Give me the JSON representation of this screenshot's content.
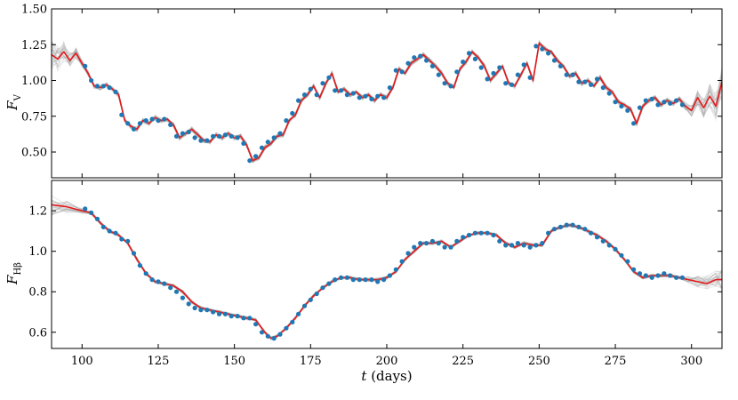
{
  "chart_data": [
    {
      "type": "line",
      "panel": "top",
      "title": "",
      "ylabel": "F",
      "ylabel_sub": "V",
      "xlabel": "",
      "xlim": [
        90,
        310
      ],
      "ylim": [
        0.32,
        1.5
      ],
      "xticks": [
        100,
        125,
        150,
        175,
        200,
        225,
        250,
        275,
        300
      ],
      "xticklabels_visible": false,
      "yticks": [
        0.5,
        0.75,
        1.0,
        1.25,
        1.5
      ],
      "yticklabels": [
        "0.50",
        "0.75",
        "1.00",
        "1.25",
        "1.50"
      ],
      "grid": false,
      "legend": "none",
      "series": [
        {
          "role": "model",
          "style": "red line",
          "x": [
            90,
            92,
            94,
            96,
            98,
            100,
            102,
            104,
            106,
            108,
            110,
            112,
            114,
            116,
            118,
            120,
            122,
            124,
            126,
            128,
            130,
            132,
            134,
            136,
            138,
            140,
            142,
            144,
            146,
            148,
            150,
            152,
            154,
            156,
            158,
            160,
            162,
            164,
            166,
            168,
            170,
            172,
            174,
            176,
            178,
            180,
            182,
            184,
            186,
            188,
            190,
            192,
            194,
            196,
            198,
            200,
            202,
            204,
            206,
            208,
            210,
            212,
            214,
            216,
            218,
            220,
            222,
            224,
            226,
            228,
            230,
            232,
            234,
            236,
            238,
            240,
            242,
            244,
            246,
            248,
            250,
            252,
            254,
            256,
            258,
            260,
            262,
            264,
            266,
            268,
            270,
            272,
            274,
            276,
            278,
            280,
            282,
            284,
            286,
            288,
            290,
            292,
            294,
            296,
            298,
            300,
            302,
            304,
            306,
            308,
            310
          ],
          "y": [
            1.18,
            1.15,
            1.2,
            1.14,
            1.19,
            1.12,
            1.05,
            0.96,
            0.95,
            0.97,
            0.94,
            0.9,
            0.72,
            0.68,
            0.66,
            0.72,
            0.7,
            0.74,
            0.72,
            0.73,
            0.69,
            0.6,
            0.63,
            0.66,
            0.62,
            0.58,
            0.57,
            0.62,
            0.6,
            0.63,
            0.6,
            0.61,
            0.55,
            0.44,
            0.46,
            0.53,
            0.56,
            0.61,
            0.62,
            0.72,
            0.76,
            0.86,
            0.9,
            0.96,
            0.88,
            0.98,
            1.05,
            0.92,
            0.94,
            0.9,
            0.92,
            0.88,
            0.9,
            0.86,
            0.9,
            0.88,
            0.95,
            1.08,
            1.05,
            1.12,
            1.15,
            1.18,
            1.14,
            1.1,
            1.05,
            0.98,
            0.95,
            1.08,
            1.13,
            1.2,
            1.16,
            1.1,
            1.0,
            1.05,
            1.1,
            0.98,
            0.96,
            1.04,
            1.12,
            1.0,
            1.26,
            1.22,
            1.2,
            1.14,
            1.1,
            1.03,
            1.05,
            0.98,
            1.0,
            0.96,
            1.02,
            0.95,
            0.92,
            0.85,
            0.83,
            0.8,
            0.7,
            0.82,
            0.86,
            0.88,
            0.83,
            0.86,
            0.84,
            0.87,
            0.82,
            0.79,
            0.88,
            0.81,
            0.89,
            0.82,
            0.99
          ]
        },
        {
          "role": "observations",
          "style": "blue dots",
          "x": [
            101,
            103,
            105,
            107,
            109,
            111,
            113,
            115,
            117,
            119,
            121,
            123,
            125,
            127,
            129,
            131,
            133,
            135,
            137,
            139,
            141,
            143,
            145,
            147,
            149,
            151,
            153,
            155,
            157,
            159,
            161,
            163,
            165,
            167,
            169,
            171,
            173,
            175,
            177,
            179,
            181,
            183,
            185,
            187,
            189,
            191,
            193,
            195,
            197,
            199,
            201,
            203,
            205,
            207,
            209,
            211,
            213,
            215,
            217,
            219,
            221,
            223,
            225,
            227,
            229,
            231,
            233,
            235,
            237,
            239,
            241,
            243,
            245,
            247,
            249,
            251,
            253,
            255,
            257,
            259,
            261,
            263,
            265,
            267,
            269,
            271,
            273,
            275,
            277,
            279,
            281,
            283,
            285,
            287,
            289,
            291,
            293,
            295,
            297
          ],
          "y": [
            1.1,
            1.0,
            0.96,
            0.96,
            0.95,
            0.92,
            0.76,
            0.7,
            0.66,
            0.7,
            0.72,
            0.73,
            0.72,
            0.73,
            0.69,
            0.61,
            0.63,
            0.64,
            0.6,
            0.58,
            0.58,
            0.61,
            0.61,
            0.62,
            0.61,
            0.6,
            0.56,
            0.44,
            0.47,
            0.53,
            0.57,
            0.6,
            0.63,
            0.72,
            0.77,
            0.86,
            0.9,
            0.94,
            0.9,
            0.98,
            1.02,
            0.93,
            0.93,
            0.9,
            0.91,
            0.88,
            0.89,
            0.87,
            0.89,
            0.88,
            0.95,
            1.07,
            1.06,
            1.12,
            1.16,
            1.17,
            1.14,
            1.1,
            1.04,
            0.98,
            0.96,
            1.06,
            1.13,
            1.19,
            1.15,
            1.09,
            1.01,
            1.05,
            1.09,
            0.98,
            0.97,
            1.04,
            1.11,
            1.02,
            1.24,
            1.22,
            1.19,
            1.14,
            1.1,
            1.04,
            1.04,
            0.99,
            0.99,
            0.97,
            1.01,
            0.95,
            0.91,
            0.85,
            0.82,
            0.79,
            0.7,
            0.81,
            0.86,
            0.87,
            0.83,
            0.85,
            0.84,
            0.86,
            0.83
          ]
        }
      ]
    },
    {
      "type": "line",
      "panel": "bottom",
      "title": "",
      "ylabel": "F",
      "ylabel_sub": "Hβ",
      "xlabel": "t",
      "xlabel_unit": "(days)",
      "xlim": [
        90,
        310
      ],
      "ylim": [
        0.52,
        1.35
      ],
      "xticks": [
        100,
        125,
        150,
        175,
        200,
        225,
        250,
        275,
        300
      ],
      "xticklabels": [
        "100",
        "125",
        "150",
        "175",
        "200",
        "225",
        "250",
        "275",
        "300"
      ],
      "yticks": [
        0.6,
        0.8,
        1.0,
        1.2
      ],
      "yticklabels": [
        "0.6",
        "0.8",
        "1.0",
        "1.2"
      ],
      "grid": false,
      "legend": "none",
      "series": [
        {
          "role": "model",
          "style": "red line",
          "x": [
            90,
            95,
            100,
            103,
            106,
            109,
            112,
            115,
            118,
            121,
            124,
            127,
            130,
            133,
            136,
            139,
            142,
            145,
            148,
            151,
            154,
            157,
            160,
            162,
            164,
            167,
            170,
            173,
            176,
            179,
            182,
            185,
            188,
            191,
            194,
            197,
            200,
            203,
            206,
            209,
            212,
            215,
            218,
            221,
            224,
            227,
            230,
            233,
            236,
            239,
            242,
            245,
            248,
            251,
            254,
            257,
            260,
            263,
            266,
            269,
            272,
            275,
            278,
            281,
            284,
            287,
            290,
            293,
            296,
            299,
            302,
            305,
            308,
            310
          ],
          "y": [
            1.23,
            1.22,
            1.2,
            1.19,
            1.14,
            1.1,
            1.08,
            1.04,
            0.96,
            0.89,
            0.85,
            0.84,
            0.83,
            0.8,
            0.75,
            0.72,
            0.71,
            0.7,
            0.69,
            0.68,
            0.67,
            0.66,
            0.6,
            0.57,
            0.58,
            0.62,
            0.67,
            0.73,
            0.78,
            0.82,
            0.85,
            0.87,
            0.87,
            0.86,
            0.86,
            0.86,
            0.87,
            0.9,
            0.96,
            1.0,
            1.04,
            1.04,
            1.05,
            1.02,
            1.05,
            1.08,
            1.09,
            1.09,
            1.08,
            1.04,
            1.02,
            1.04,
            1.03,
            1.03,
            1.1,
            1.12,
            1.13,
            1.12,
            1.1,
            1.08,
            1.05,
            1.01,
            0.96,
            0.9,
            0.87,
            0.88,
            0.88,
            0.88,
            0.87,
            0.86,
            0.85,
            0.84,
            0.86,
            0.86
          ]
        },
        {
          "role": "observations",
          "style": "blue dots",
          "x": [
            101,
            103,
            105,
            107,
            109,
            111,
            113,
            115,
            117,
            119,
            121,
            123,
            125,
            127,
            129,
            131,
            133,
            135,
            137,
            139,
            141,
            143,
            145,
            147,
            149,
            151,
            153,
            155,
            157,
            159,
            161,
            163,
            165,
            167,
            169,
            171,
            173,
            175,
            177,
            179,
            181,
            183,
            185,
            187,
            189,
            191,
            193,
            195,
            197,
            199,
            201,
            203,
            205,
            207,
            209,
            211,
            213,
            215,
            217,
            219,
            221,
            223,
            225,
            227,
            229,
            231,
            233,
            235,
            237,
            239,
            241,
            243,
            245,
            247,
            249,
            251,
            253,
            255,
            257,
            259,
            261,
            263,
            265,
            267,
            269,
            271,
            273,
            275,
            277,
            279,
            281,
            283,
            285,
            287,
            289,
            291,
            293,
            295,
            297
          ],
          "y": [
            1.21,
            1.19,
            1.16,
            1.12,
            1.1,
            1.09,
            1.06,
            1.05,
            0.99,
            0.93,
            0.89,
            0.86,
            0.85,
            0.84,
            0.82,
            0.8,
            0.77,
            0.74,
            0.72,
            0.71,
            0.71,
            0.7,
            0.69,
            0.69,
            0.68,
            0.68,
            0.67,
            0.67,
            0.64,
            0.6,
            0.58,
            0.57,
            0.59,
            0.62,
            0.65,
            0.69,
            0.73,
            0.76,
            0.79,
            0.82,
            0.84,
            0.86,
            0.87,
            0.87,
            0.86,
            0.86,
            0.86,
            0.86,
            0.85,
            0.86,
            0.88,
            0.91,
            0.95,
            0.99,
            1.02,
            1.04,
            1.04,
            1.05,
            1.04,
            1.02,
            1.02,
            1.05,
            1.07,
            1.08,
            1.09,
            1.09,
            1.09,
            1.08,
            1.05,
            1.03,
            1.03,
            1.04,
            1.03,
            1.02,
            1.03,
            1.04,
            1.09,
            1.11,
            1.12,
            1.13,
            1.13,
            1.12,
            1.11,
            1.09,
            1.07,
            1.05,
            1.03,
            1.01,
            0.98,
            0.95,
            0.91,
            0.89,
            0.88,
            0.87,
            0.88,
            0.89,
            0.88,
            0.87,
            0.87
          ]
        }
      ]
    }
  ],
  "colors": {
    "model_line": "#e41a1c",
    "observations": "#1f77b4",
    "samples": "#9a9a9a"
  }
}
